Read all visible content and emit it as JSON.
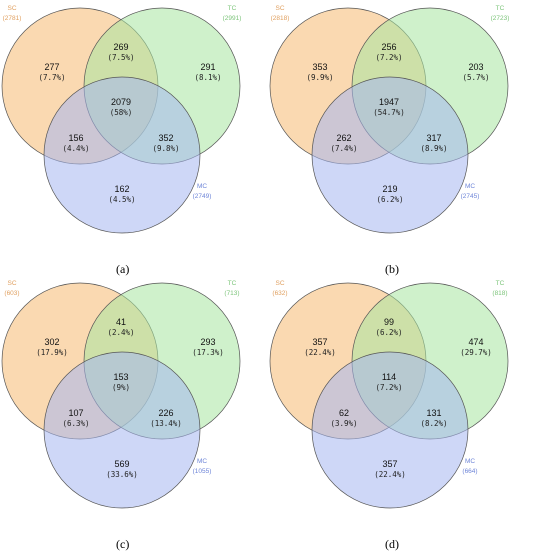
{
  "colors": {
    "sc": "#F5B971",
    "tc": "#A8E6A1",
    "mc": "#A6B6F0",
    "sc_text": "#E0A060",
    "tc_text": "#7CC47A",
    "mc_text": "#6E85D8",
    "stroke": "#555555"
  },
  "panels": [
    {
      "label": "(a)",
      "sets": {
        "sc": {
          "name": "SC",
          "total": "(2781)"
        },
        "tc": {
          "name": "TC",
          "total": "(2991)"
        },
        "mc": {
          "name": "MC",
          "total": "(2749)"
        }
      },
      "regions": {
        "sc_only": {
          "count": "277",
          "pct": "(7.7%)"
        },
        "sc_tc": {
          "count": "269",
          "pct": "(7.5%)"
        },
        "tc_only": {
          "count": "291",
          "pct": "(8.1%)"
        },
        "all": {
          "count": "2079",
          "pct": "(58%)"
        },
        "sc_mc": {
          "count": "156",
          "pct": "(4.4%)"
        },
        "tc_mc": {
          "count": "352",
          "pct": "(9.8%)"
        },
        "mc_only": {
          "count": "162",
          "pct": "(4.5%)"
        }
      }
    },
    {
      "label": "(b)",
      "sets": {
        "sc": {
          "name": "SC",
          "total": "(2818)"
        },
        "tc": {
          "name": "TC",
          "total": "(2723)"
        },
        "mc": {
          "name": "MC",
          "total": "(2745)"
        }
      },
      "regions": {
        "sc_only": {
          "count": "353",
          "pct": "(9.9%)"
        },
        "sc_tc": {
          "count": "256",
          "pct": "(7.2%)"
        },
        "tc_only": {
          "count": "203",
          "pct": "(5.7%)"
        },
        "all": {
          "count": "1947",
          "pct": "(54.7%)"
        },
        "sc_mc": {
          "count": "262",
          "pct": "(7.4%)"
        },
        "tc_mc": {
          "count": "317",
          "pct": "(8.9%)"
        },
        "mc_only": {
          "count": "219",
          "pct": "(6.2%)"
        }
      }
    },
    {
      "label": "(c)",
      "sets": {
        "sc": {
          "name": "SC",
          "total": "(603)"
        },
        "tc": {
          "name": "TC",
          "total": "(713)"
        },
        "mc": {
          "name": "MC",
          "total": "(1055)"
        }
      },
      "regions": {
        "sc_only": {
          "count": "302",
          "pct": "(17.9%)"
        },
        "sc_tc": {
          "count": "41",
          "pct": "(2.4%)"
        },
        "tc_only": {
          "count": "293",
          "pct": "(17.3%)"
        },
        "all": {
          "count": "153",
          "pct": "(9%)"
        },
        "sc_mc": {
          "count": "107",
          "pct": "(6.3%)"
        },
        "tc_mc": {
          "count": "226",
          "pct": "(13.4%)"
        },
        "mc_only": {
          "count": "569",
          "pct": "(33.6%)"
        }
      }
    },
    {
      "label": "(d)",
      "sets": {
        "sc": {
          "name": "SC",
          "total": "(632)"
        },
        "tc": {
          "name": "TC",
          "total": "(818)"
        },
        "mc": {
          "name": "MC",
          "total": "(664)"
        }
      },
      "regions": {
        "sc_only": {
          "count": "357",
          "pct": "(22.4%)"
        },
        "sc_tc": {
          "count": "99",
          "pct": "(6.2%)"
        },
        "tc_only": {
          "count": "474",
          "pct": "(29.7%)"
        },
        "all": {
          "count": "114",
          "pct": "(7.2%)"
        },
        "sc_mc": {
          "count": "62",
          "pct": "(3.9%)"
        },
        "tc_mc": {
          "count": "131",
          "pct": "(8.2%)"
        },
        "mc_only": {
          "count": "357",
          "pct": "(22.4%)"
        }
      }
    }
  ]
}
